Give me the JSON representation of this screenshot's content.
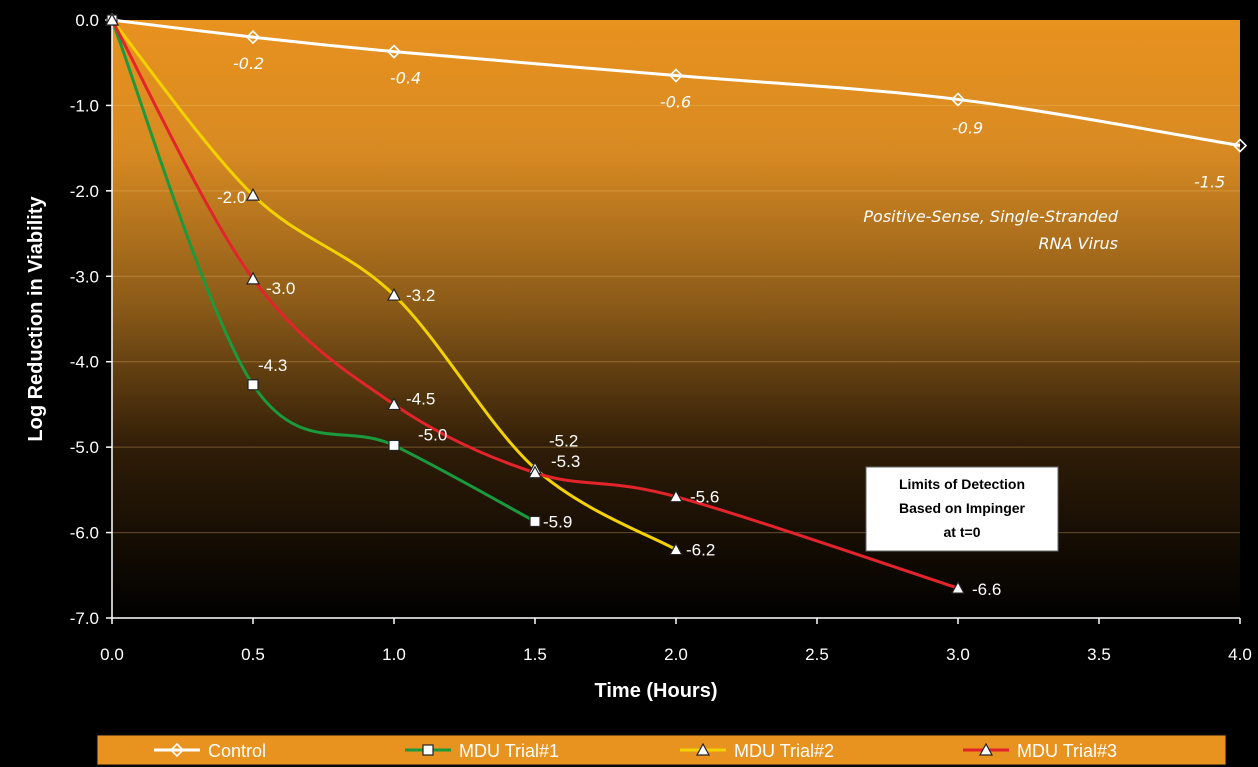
{
  "chart_data": {
    "type": "line",
    "xlabel": "Time (Hours)",
    "ylabel": "Log Reduction in Viability",
    "xlim": [
      0,
      4
    ],
    "ylim": [
      -7,
      0
    ],
    "x_ticks": [
      "0.0",
      "0.5",
      "1.0",
      "1.5",
      "2.0",
      "2.5",
      "3.0",
      "3.5",
      "4.0"
    ],
    "y_ticks": [
      "0.0",
      "-1.0",
      "-2.0",
      "-3.0",
      "-4.0",
      "-5.0",
      "-6.0",
      "-7.0"
    ],
    "grid": "horizontal",
    "legend_position": "bottom",
    "annotation": [
      "Positive-Sense, Single-Stranded",
      "RNA Virus"
    ],
    "box_note": [
      "Limits of Detection",
      "Based on Impinger",
      "at t=0"
    ],
    "series": [
      {
        "name": "Control",
        "color": "#ffffff",
        "marker": "diamond",
        "x": [
          0,
          0.5,
          1.0,
          2.0,
          3.0,
          4.0
        ],
        "y": [
          0,
          -0.2,
          -0.37,
          -0.65,
          -0.93,
          -1.47
        ],
        "labels": [
          "",
          "-0.2",
          "-0.4",
          "-0.6",
          "-0.9",
          "-1.5"
        ]
      },
      {
        "name": "MDU Trial#1",
        "color": "#1a9a3c",
        "marker": "square",
        "x": [
          0,
          0.5,
          1.0,
          1.5
        ],
        "y": [
          0,
          -4.27,
          -4.98,
          -5.87
        ],
        "labels": [
          "",
          "-4.3",
          "-5.0",
          "-5.9"
        ]
      },
      {
        "name": "MDU Trial#2",
        "color": "#f2d200",
        "marker": "triangle",
        "x": [
          0,
          0.5,
          1.0,
          1.5,
          2.0
        ],
        "y": [
          0,
          -2.05,
          -3.22,
          -5.25,
          -6.2
        ],
        "labels": [
          "",
          "-2.0",
          "-3.2",
          "-5.2",
          "-6.2"
        ]
      },
      {
        "name": "MDU Trial#3",
        "color": "#e3242b",
        "marker": "triangle",
        "x": [
          0,
          0.5,
          1.0,
          1.5,
          2.0,
          3.0
        ],
        "y": [
          0,
          -3.03,
          -4.5,
          -5.3,
          -5.58,
          -6.65
        ],
        "labels": [
          "",
          "-3.0",
          "-4.5",
          "-5.3",
          "-5.6",
          "-6.6"
        ]
      }
    ]
  }
}
